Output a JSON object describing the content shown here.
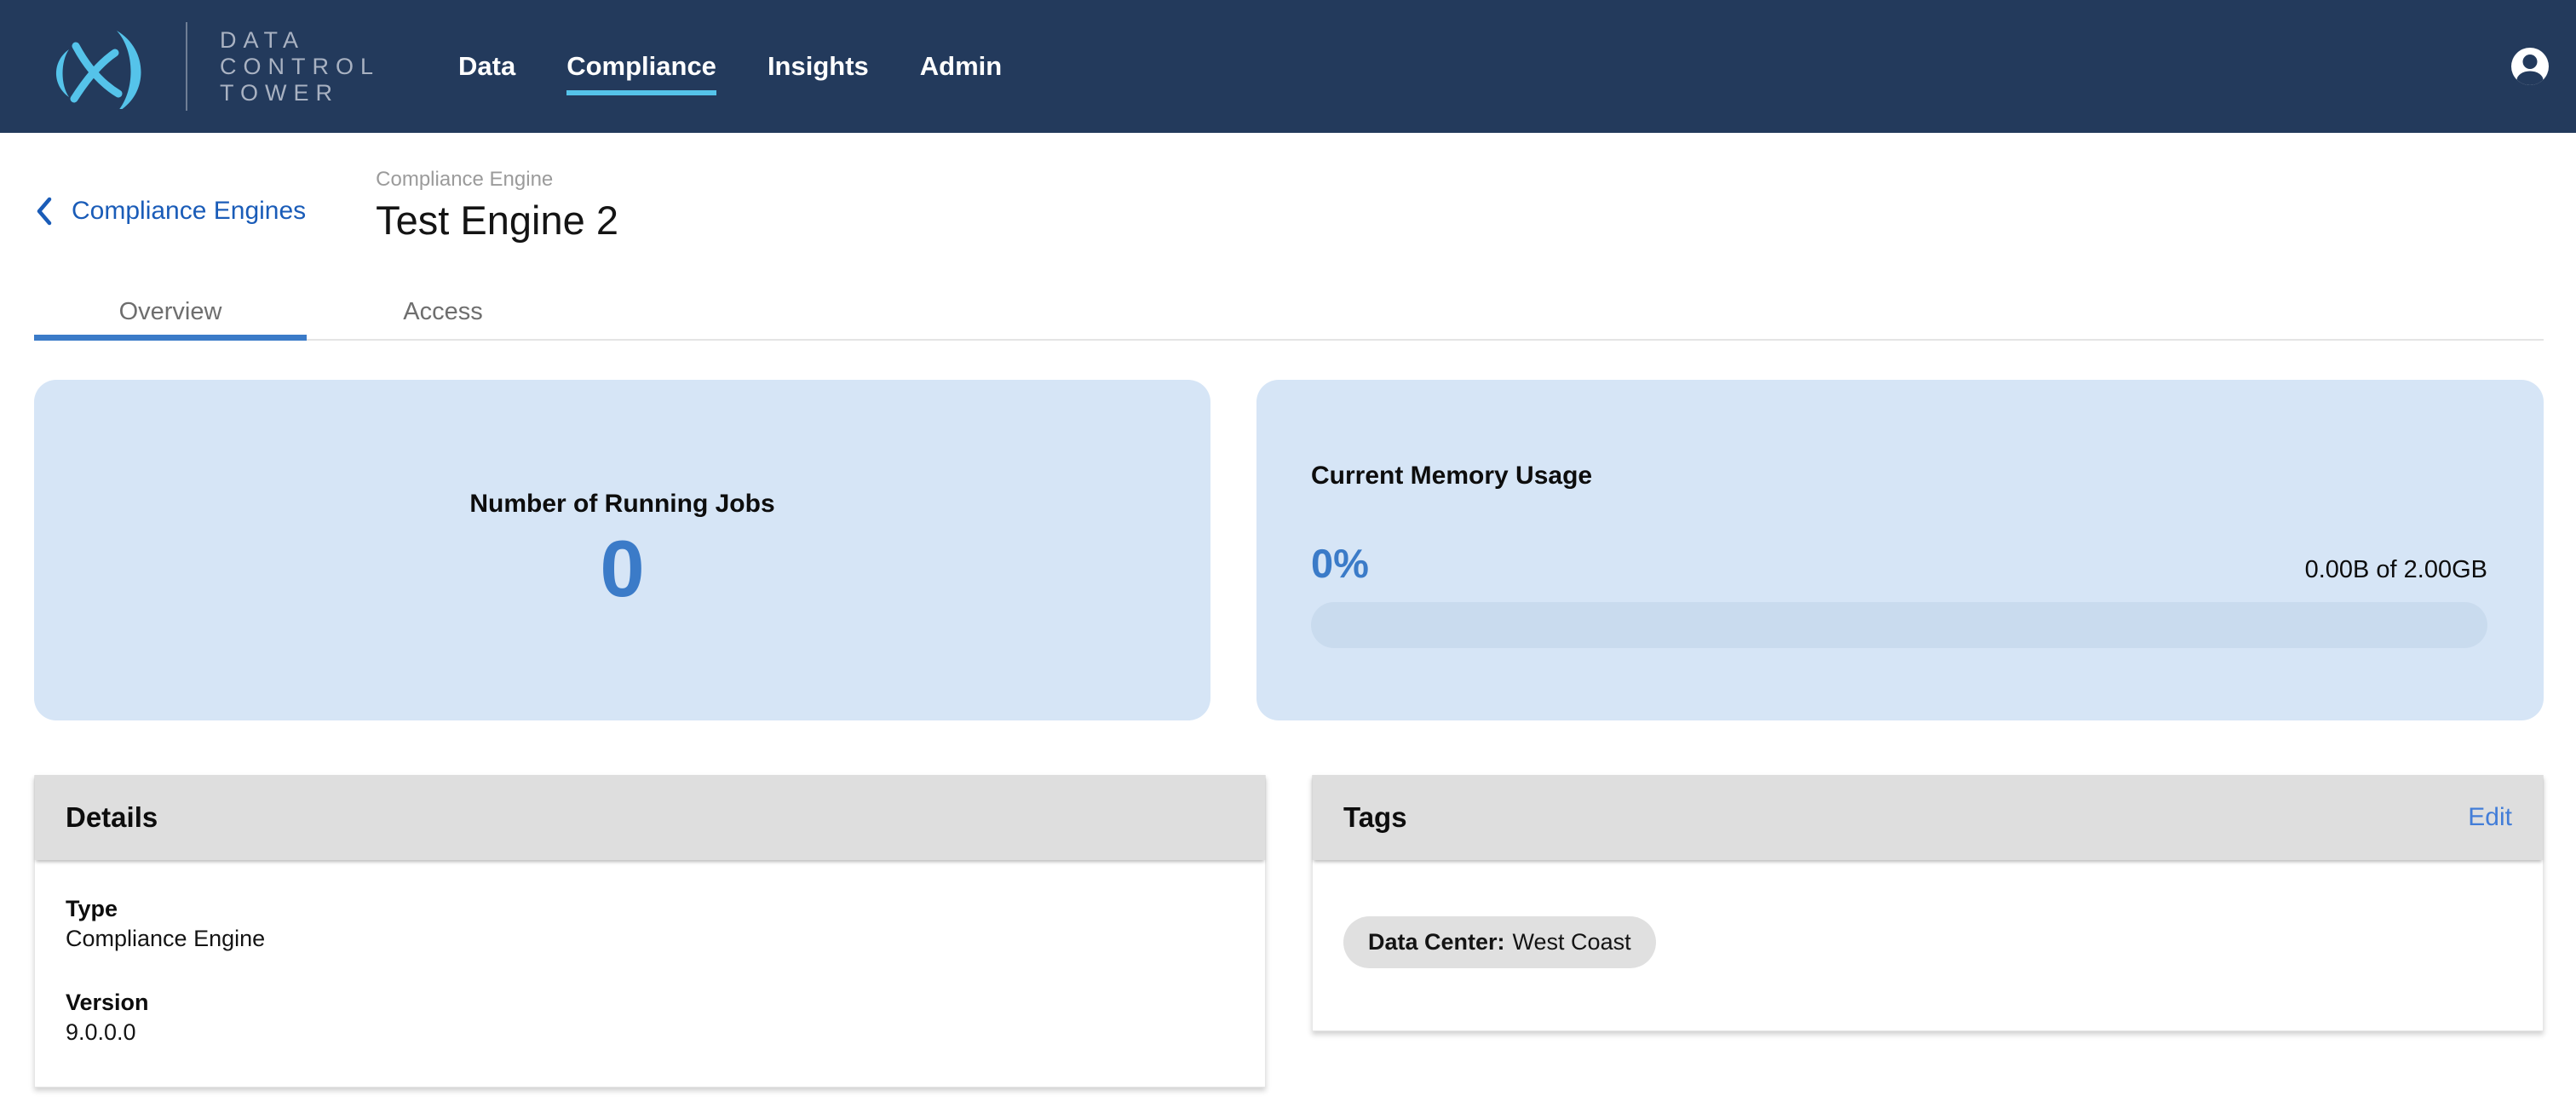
{
  "brand": {
    "name_lines": [
      "DATA",
      "CONTROL",
      "TOWER"
    ]
  },
  "nav": {
    "items": [
      {
        "label": "Data",
        "active": false
      },
      {
        "label": "Compliance",
        "active": true
      },
      {
        "label": "Insights",
        "active": false
      },
      {
        "label": "Admin",
        "active": false
      }
    ]
  },
  "breadcrumb": {
    "back_label": "Compliance Engines",
    "category": "Compliance Engine",
    "title": "Test Engine 2"
  },
  "tabs": {
    "items": [
      {
        "label": "Overview",
        "active": true
      },
      {
        "label": "Access",
        "active": false
      }
    ]
  },
  "metrics": {
    "running_jobs": {
      "title": "Number of Running Jobs",
      "value": "0"
    },
    "memory": {
      "title": "Current Memory Usage",
      "percent_label": "0%",
      "percent_value": 0,
      "usage_label": "0.00B of 2.00GB"
    }
  },
  "details": {
    "title": "Details",
    "fields": [
      {
        "label": "Type",
        "value": "Compliance Engine"
      },
      {
        "label": "Version",
        "value": "9.0.0.0"
      }
    ]
  },
  "tags": {
    "title": "Tags",
    "edit_label": "Edit",
    "chips": [
      {
        "label": "Data Center:",
        "value": "West Coast"
      }
    ]
  },
  "icons": {
    "logo": "delphix-x-logo-icon",
    "account": "account-circle-icon",
    "back": "chevron-left-icon"
  },
  "colors": {
    "navbar_bg": "#233A5C",
    "logo_cyan": "#55C3EA",
    "wordmark_gray": "#A9B2C2",
    "link_blue": "#1A5CB8",
    "accent_blue": "#3B7BC8",
    "edit_blue": "#427DD8",
    "card_blue": "#D6E5F6",
    "progress_track_blue": "#C9DBEE",
    "panel_header_gray": "#DEDEDE",
    "chip_gray": "#E0E0E0",
    "tab_gray": "#6E6E6E",
    "category_gray": "#9B9B9B"
  }
}
